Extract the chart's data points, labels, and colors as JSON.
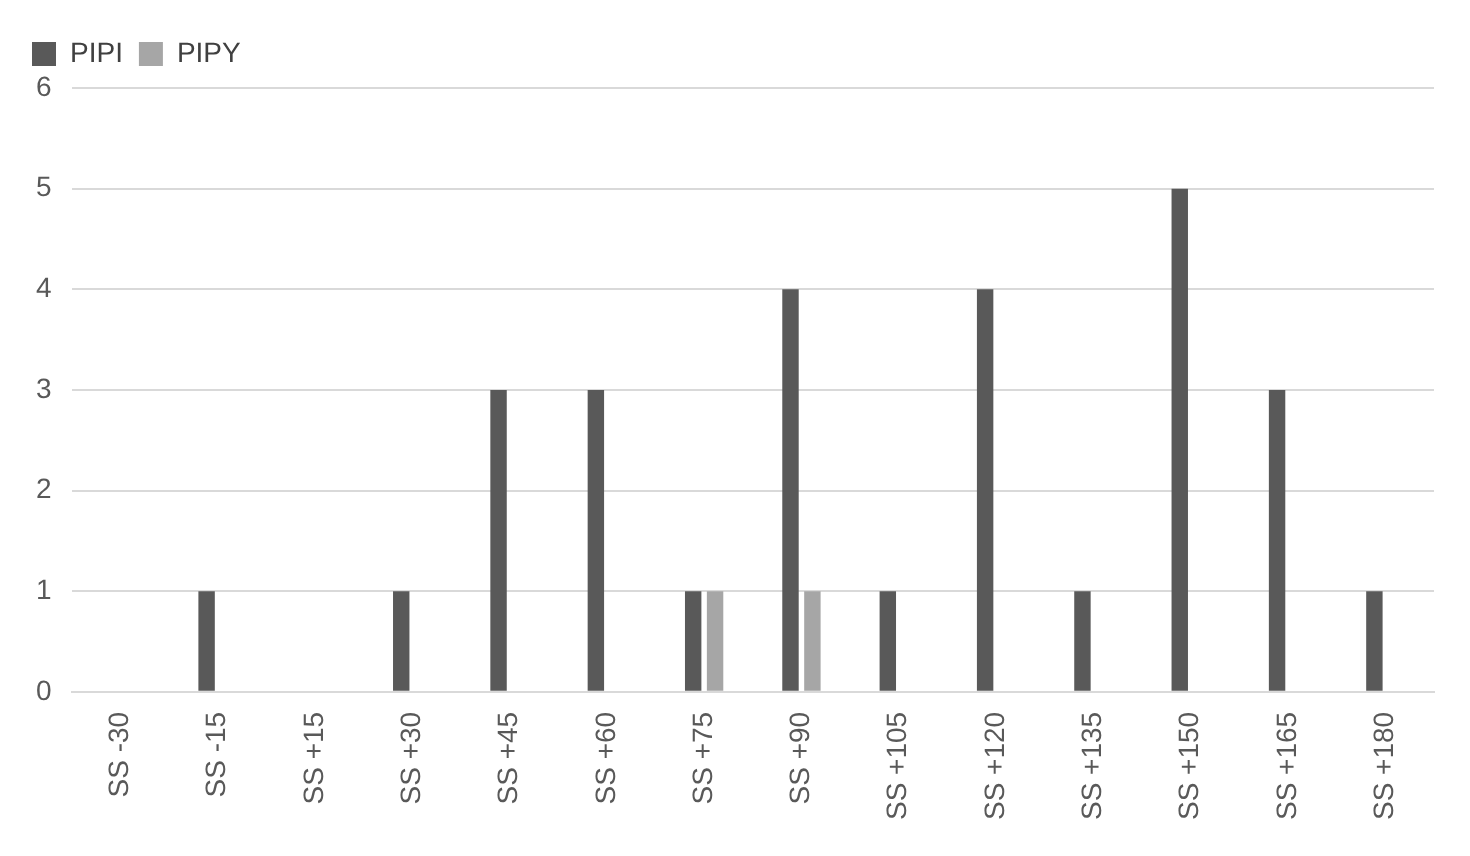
{
  "chart_data": {
    "type": "bar",
    "categories": [
      "SS -30",
      "SS -15",
      "SS +15",
      "SS +30",
      "SS +45",
      "SS +60",
      "SS +75",
      "SS +90",
      "SS +105",
      "SS +120",
      "SS +135",
      "SS +150",
      "SS +165",
      "SS +180"
    ],
    "series": [
      {
        "name": "PIPI",
        "color": "#595959",
        "values": [
          0,
          1,
          0,
          1,
          3,
          3,
          1,
          4,
          1,
          4,
          1,
          5,
          3,
          1
        ]
      },
      {
        "name": "PIPY",
        "color": "#a6a6a6",
        "values": [
          0,
          0,
          0,
          0,
          0,
          0,
          1,
          1,
          0,
          0,
          0,
          0,
          0,
          0
        ]
      }
    ],
    "ylim": [
      0,
      6
    ],
    "yticks": [
      0,
      1,
      2,
      3,
      4,
      5,
      6
    ],
    "grid": "y",
    "legend": "top left"
  }
}
